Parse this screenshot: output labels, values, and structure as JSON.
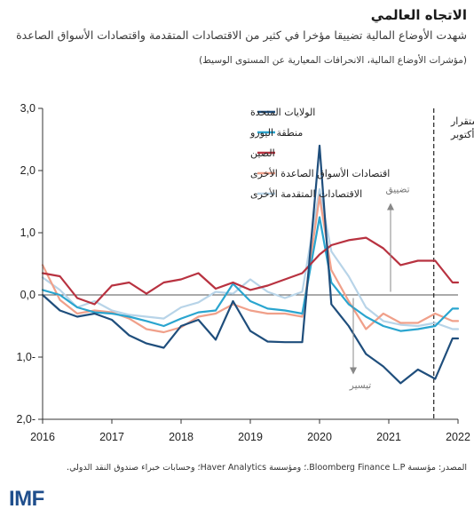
{
  "header": {
    "title": "الاتجاه العالمي",
    "subtitle": "شهدت الأوضاع المالية تضييقا مؤخرا في كثير من الاقتصادات المتقدمة واقتصادات الأسواق الصاعدة",
    "note": "(مؤشرات الأوضاع المالية، الانحرافات المعيارية عن المستوى الوسيط)"
  },
  "source": "المصدر: مؤسسة Bloomberg Finance L.P.؛ ومؤسسة Haver Analytics؛ وحسابات خبراء صندوق النقد الدولي.",
  "logo": "IMF",
  "chart_data": {
    "type": "line",
    "xlim": [
      2016,
      2022
    ],
    "ylim": [
      -2,
      3
    ],
    "x_ticks": [
      "2016",
      "2017",
      "2018",
      "2019",
      "2020",
      "2021",
      "2022"
    ],
    "y_ticks": [
      {
        "value": 3,
        "label": "3,0"
      },
      {
        "value": 2,
        "label": "2,0"
      },
      {
        "value": 1,
        "label": "1,0"
      },
      {
        "value": 0,
        "label": "0,0"
      },
      {
        "value": -1,
        "label": "1,0-"
      },
      {
        "value": -2,
        "label": "2,0-"
      }
    ],
    "legend_placement": "top-center",
    "annotations": {
      "report_line_x": 2021.65,
      "report_label_lines": [
        "تقرير \"الاستقرار",
        "المالي العالمي\"، أكتوبر"
      ],
      "tightening_label": "تضييق",
      "easing_label": "تيسير"
    },
    "series": [
      {
        "name": "الولايات المتحدة",
        "color": "#1f4e7c",
        "x": [
          2016.0,
          2016.25,
          2016.5,
          2016.75,
          2017.0,
          2017.25,
          2017.5,
          2017.75,
          2018.0,
          2018.25,
          2018.5,
          2018.75,
          2019.0,
          2019.25,
          2019.5,
          2019.75,
          2020.0,
          2020.17,
          2020.42,
          2020.67,
          2020.92,
          2021.17,
          2021.42,
          2021.67,
          2021.92,
          2022.0
        ],
        "y": [
          0.0,
          -0.25,
          -0.35,
          -0.3,
          -0.4,
          -0.65,
          -0.78,
          -0.85,
          -0.5,
          -0.4,
          -0.72,
          -0.1,
          -0.58,
          -0.75,
          -0.76,
          -0.76,
          2.4,
          -0.15,
          -0.5,
          -0.95,
          -1.15,
          -1.42,
          -1.2,
          -1.35,
          -0.7,
          -0.7
        ]
      },
      {
        "name": "منطقة اليورو",
        "color": "#2aa5cf",
        "x": [
          2016.0,
          2016.25,
          2016.5,
          2016.75,
          2017.0,
          2017.25,
          2017.5,
          2017.75,
          2018.0,
          2018.25,
          2018.5,
          2018.75,
          2019.0,
          2019.25,
          2019.5,
          2019.75,
          2020.0,
          2020.17,
          2020.42,
          2020.67,
          2020.92,
          2021.17,
          2021.42,
          2021.67,
          2021.92,
          2022.0
        ],
        "y": [
          0.08,
          0.0,
          -0.2,
          -0.28,
          -0.3,
          -0.35,
          -0.42,
          -0.5,
          -0.38,
          -0.28,
          -0.25,
          0.18,
          -0.1,
          -0.22,
          -0.25,
          -0.3,
          1.25,
          0.2,
          -0.15,
          -0.35,
          -0.5,
          -0.58,
          -0.55,
          -0.5,
          -0.22,
          -0.22
        ]
      },
      {
        "name": "الصين",
        "color": "#b83240",
        "x": [
          2016.0,
          2016.25,
          2016.5,
          2016.75,
          2017.0,
          2017.25,
          2017.5,
          2017.75,
          2018.0,
          2018.25,
          2018.5,
          2018.75,
          2019.0,
          2019.25,
          2019.5,
          2019.75,
          2020.0,
          2020.17,
          2020.42,
          2020.67,
          2020.92,
          2021.17,
          2021.42,
          2021.67,
          2021.92,
          2022.0
        ],
        "y": [
          0.35,
          0.3,
          -0.05,
          -0.15,
          0.15,
          0.2,
          0.02,
          0.2,
          0.25,
          0.35,
          0.1,
          0.2,
          0.08,
          0.15,
          0.25,
          0.35,
          0.65,
          0.8,
          0.88,
          0.92,
          0.75,
          0.48,
          0.55,
          0.55,
          0.2,
          0.2
        ]
      },
      {
        "name": "اقتصادات الأسواق الصاعدة الأخرى",
        "color": "#f0a08a",
        "x": [
          2016.0,
          2016.25,
          2016.5,
          2016.75,
          2017.0,
          2017.25,
          2017.5,
          2017.75,
          2018.0,
          2018.25,
          2018.5,
          2018.75,
          2019.0,
          2019.25,
          2019.5,
          2019.75,
          2020.0,
          2020.17,
          2020.42,
          2020.67,
          2020.92,
          2021.17,
          2021.42,
          2021.67,
          2021.92,
          2022.0
        ],
        "y": [
          0.48,
          -0.08,
          -0.3,
          -0.25,
          -0.28,
          -0.38,
          -0.55,
          -0.6,
          -0.52,
          -0.35,
          -0.3,
          -0.15,
          -0.25,
          -0.3,
          -0.3,
          -0.35,
          1.58,
          0.4,
          -0.1,
          -0.55,
          -0.3,
          -0.45,
          -0.45,
          -0.3,
          -0.42,
          -0.42
        ]
      },
      {
        "name": "الاقتصادات المتقدمة الأخرى",
        "color": "#b8d4e8",
        "x": [
          2016.0,
          2016.25,
          2016.5,
          2016.75,
          2017.0,
          2017.25,
          2017.5,
          2017.75,
          2018.0,
          2018.25,
          2018.5,
          2018.75,
          2019.0,
          2019.25,
          2019.5,
          2019.75,
          2020.0,
          2020.17,
          2020.42,
          2020.67,
          2020.92,
          2021.17,
          2021.42,
          2021.67,
          2021.92,
          2022.0
        ],
        "y": [
          0.28,
          0.08,
          -0.2,
          -0.1,
          -0.25,
          -0.32,
          -0.35,
          -0.38,
          -0.2,
          -0.12,
          0.05,
          0.02,
          0.25,
          0.05,
          -0.05,
          0.05,
          1.7,
          0.7,
          0.3,
          -0.2,
          -0.42,
          -0.48,
          -0.5,
          -0.45,
          -0.55,
          -0.55
        ]
      }
    ]
  }
}
